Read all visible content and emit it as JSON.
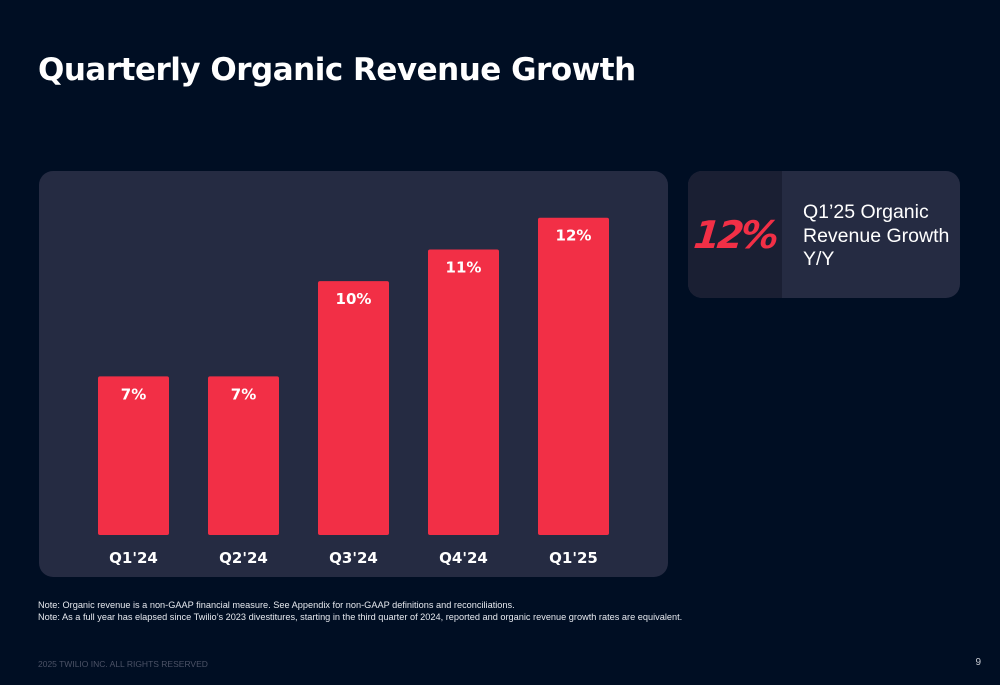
{
  "title": "Quarterly Organic Revenue Growth",
  "chart_data": {
    "type": "bar",
    "categories": [
      "Q1'24",
      "Q2'24",
      "Q3'24",
      "Q4'24",
      "Q1'25"
    ],
    "values": [
      7,
      7,
      10,
      11,
      12
    ],
    "data_labels": [
      "7%",
      "7%",
      "10%",
      "11%",
      "12%"
    ],
    "xlabel": "",
    "ylabel": "",
    "ylim": [
      2,
      13
    ],
    "grid": false,
    "legend": "none",
    "bar_color": "#f22f46",
    "label_color": "#ffffff"
  },
  "kpi": {
    "value": "12%",
    "label": "Q1’25 Organic Revenue Growth Y/Y",
    "accent_color": "#f22f46"
  },
  "notes": [
    "Note: Organic revenue is a non-GAAP financial measure. See Appendix for non-GAAP definitions and reconciliations.",
    "Note: As a full year has elapsed since Twilio’s 2023 divestitures, starting in the third quarter of 2024, reported and organic revenue growth rates are equivalent."
  ],
  "footer": "2025 TWILIO INC. ALL RIGHTS RESERVED",
  "page_number": "9"
}
